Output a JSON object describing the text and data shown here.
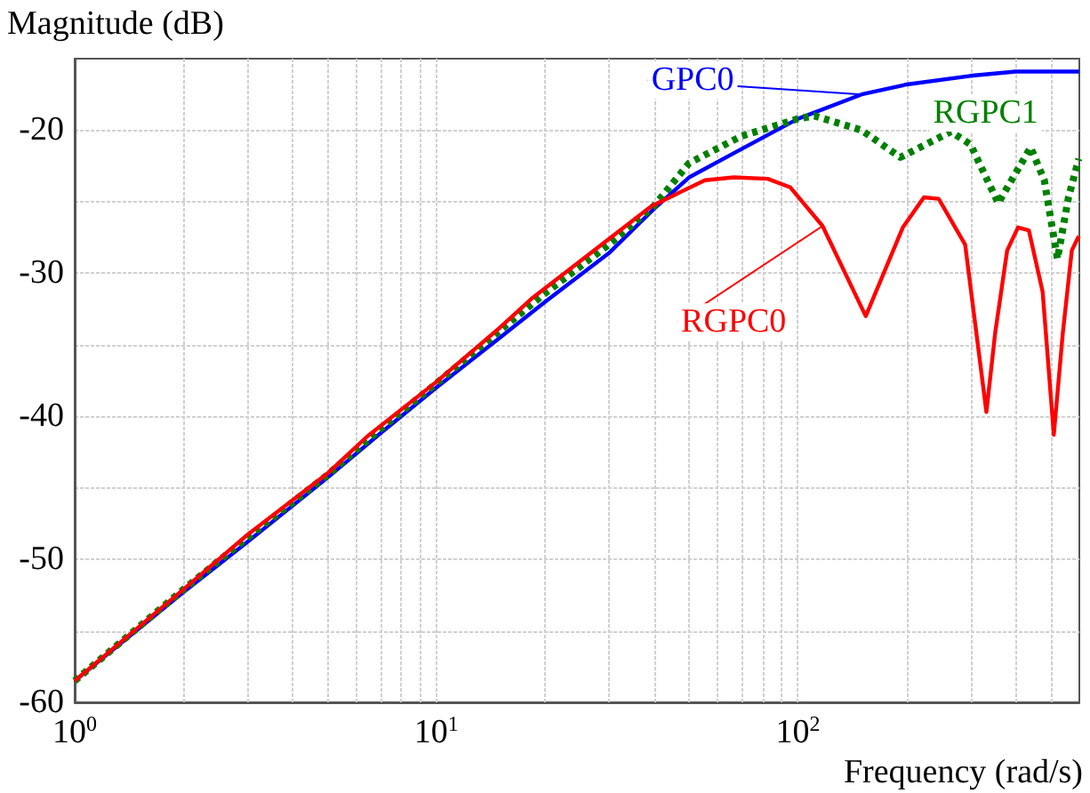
{
  "chart_data": {
    "type": "line",
    "xlabel": "Frequency (rad/s)",
    "ylabel": "Magnitude (dB)",
    "log": "x",
    "grid": true,
    "legend": false,
    "marker": "none",
    "xlim": [
      1,
      600
    ],
    "ylim": [
      -60,
      -15
    ],
    "xticks": [
      {
        "value": 1,
        "label": "10$^{0}$"
      },
      {
        "value": 2,
        "label": null
      },
      {
        "value": 3,
        "label": null
      },
      {
        "value": 4,
        "label": null
      },
      {
        "value": 5,
        "label": null
      },
      {
        "value": 6,
        "label": null
      },
      {
        "value": 7,
        "label": null
      },
      {
        "value": 8,
        "label": null
      },
      {
        "value": 9,
        "label": null
      },
      {
        "value": 10,
        "label": "10$^{1}$"
      },
      {
        "value": 20,
        "label": null
      },
      {
        "value": 30,
        "label": null
      },
      {
        "value": 40,
        "label": null
      },
      {
        "value": 50,
        "label": null
      },
      {
        "value": 60,
        "label": null
      },
      {
        "value": 70,
        "label": null
      },
      {
        "value": 80,
        "label": null
      },
      {
        "value": 90,
        "label": null
      },
      {
        "value": 100,
        "label": "10$^{2}$"
      },
      {
        "value": 200,
        "label": null
      },
      {
        "value": 300,
        "label": null
      },
      {
        "value": 400,
        "label": null
      },
      {
        "value": 500,
        "label": null
      }
    ],
    "yticks": [
      -60,
      {
        "value": -55,
        "label": null
      },
      -50,
      {
        "value": -45,
        "label": null
      },
      -40,
      {
        "value": -35,
        "label": null
      },
      -30,
      {
        "value": -25,
        "label": null
      },
      -20
    ],
    "series": [
      {
        "name": "GPC0",
        "color": "#0000ff",
        "line_style": "solid",
        "x": [
          1,
          2,
          3,
          5,
          7,
          10,
          15,
          20,
          30,
          40,
          50,
          70,
          100,
          150,
          200,
          300,
          400,
          600
        ],
        "values": [
          -58.5,
          -52.3,
          -48.8,
          -44.3,
          -41.2,
          -38.0,
          -34.5,
          -32.0,
          -28.6,
          -25.5,
          -23.3,
          -21.3,
          -19.2,
          -17.5,
          -16.8,
          -16.2,
          -15.9,
          -15.9
        ]
      },
      {
        "name": "RGPC1",
        "color": "#008000",
        "line_style": "dotted",
        "x": [
          1,
          2,
          3,
          5,
          7,
          10,
          15,
          20,
          30,
          40,
          50,
          70,
          100,
          111,
          150,
          192,
          265,
          300,
          358,
          440,
          480,
          522,
          560,
          598
        ],
        "values": [
          -58.5,
          -52.1,
          -48.5,
          -44.1,
          -40.9,
          -37.7,
          -34.0,
          -31.4,
          -28.0,
          -25.3,
          -22.3,
          -20.4,
          -19.2,
          -19.0,
          -20.0,
          -21.9,
          -20.1,
          -21.0,
          -25.1,
          -21.2,
          -23.5,
          -29.0,
          -24.7,
          -22.0
        ]
      },
      {
        "name": "RGPC0",
        "color": "#ff0000",
        "line_style": "solid",
        "x": [
          1,
          2,
          3,
          5,
          6.45,
          10,
          15,
          18.5,
          39.4,
          55.3,
          66.5,
          82.5,
          95.3,
          117,
          154,
          195,
          223,
          245,
          290,
          332,
          351,
          379,
          406,
          435,
          475,
          510,
          540,
          572,
          598
        ],
        "values": [
          -58.5,
          -52.1,
          -48.3,
          -44.0,
          -41.4,
          -37.6,
          -33.8,
          -31.7,
          -25.3,
          -23.5,
          -23.3,
          -23.4,
          -24.0,
          -26.7,
          -33.0,
          -26.8,
          -24.7,
          -24.8,
          -28.0,
          -39.7,
          -34.2,
          -28.4,
          -26.8,
          -27.0,
          -31.3,
          -41.3,
          -34.2,
          -28.4,
          -27.4
        ]
      }
    ]
  }
}
